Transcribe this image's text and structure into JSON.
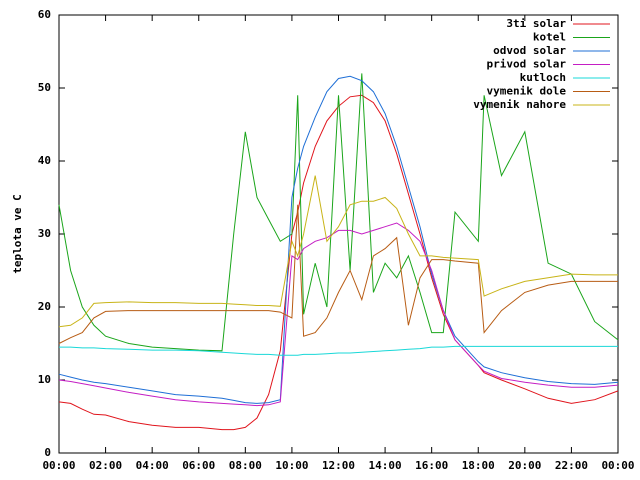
{
  "chart_data": {
    "type": "line",
    "ylabel": "teplota ve C",
    "x": [
      0,
      0.5,
      1,
      1.5,
      2,
      3,
      4,
      5,
      6,
      7,
      7.5,
      8,
      8.5,
      9,
      9.5,
      10,
      10.25,
      10.5,
      11,
      11.5,
      12,
      12.5,
      13,
      13.5,
      14,
      14.5,
      15,
      15.5,
      16,
      16.5,
      17,
      18,
      18.25,
      19,
      20,
      21,
      22,
      23,
      24
    ],
    "xlim": [
      0,
      24
    ],
    "xticks": [
      {
        "value": 0,
        "label": "00:00"
      },
      {
        "value": 2,
        "label": "02:00"
      },
      {
        "value": 4,
        "label": "04:00"
      },
      {
        "value": 6,
        "label": "06:00"
      },
      {
        "value": 8,
        "label": "08:00"
      },
      {
        "value": 10,
        "label": "10:00"
      },
      {
        "value": 12,
        "label": "12:00"
      },
      {
        "value": 14,
        "label": "14:00"
      },
      {
        "value": 16,
        "label": "16:00"
      },
      {
        "value": 18,
        "label": "18:00"
      },
      {
        "value": 20,
        "label": "20:00"
      },
      {
        "value": 22,
        "label": "22:00"
      },
      {
        "value": 24,
        "label": "00:00"
      }
    ],
    "ylim": [
      0,
      60
    ],
    "yticks": [
      0,
      10,
      20,
      30,
      40,
      50,
      60
    ],
    "legend": "top-right",
    "series": [
      {
        "name": "3ti solar",
        "color": "#e0141c",
        "values": [
          7,
          6.8,
          6,
          5.3,
          5.2,
          4.3,
          3.8,
          3.5,
          3.5,
          3.2,
          3.2,
          3.5,
          4.8,
          8,
          14,
          30,
          33,
          37,
          42,
          45.5,
          47.5,
          48.8,
          49,
          48,
          45.5,
          41,
          35.5,
          30,
          24,
          19,
          15.5,
          12,
          11,
          10,
          8.8,
          7.5,
          6.8,
          7.3,
          8.5
        ]
      },
      {
        "name": "kotel",
        "color": "#1aa51a",
        "values": [
          34,
          25,
          20,
          17.5,
          16,
          15,
          14.5,
          14.3,
          14.1,
          14,
          30,
          44,
          35,
          32,
          29,
          30,
          49,
          19,
          26,
          20,
          49,
          25,
          52,
          22,
          26,
          24,
          27,
          22,
          16.5,
          16.5,
          33,
          29,
          49,
          38,
          44,
          26,
          24.5,
          18,
          15.5
        ]
      },
      {
        "name": "odvod solar",
        "color": "#1f6fd6",
        "values": [
          10.8,
          10.4,
          10,
          9.7,
          9.5,
          9,
          8.5,
          8,
          7.8,
          7.5,
          7.2,
          6.9,
          6.8,
          6.9,
          7.3,
          35,
          39,
          42,
          46,
          49.5,
          51.3,
          51.6,
          51,
          49.5,
          46.5,
          42,
          36.5,
          31,
          24.5,
          19.5,
          16,
          12.5,
          11.8,
          11,
          10.3,
          9.8,
          9.5,
          9.4,
          9.7
        ]
      },
      {
        "name": "privod solar",
        "color": "#c41ec4",
        "values": [
          10,
          9.8,
          9.5,
          9.2,
          8.9,
          8.3,
          7.8,
          7.3,
          7,
          6.8,
          6.7,
          6.6,
          6.5,
          6.6,
          7,
          27,
          26.5,
          28,
          29,
          29.5,
          30.5,
          30.5,
          30,
          30.5,
          31,
          31.5,
          30.5,
          29,
          25,
          19.5,
          15.5,
          12,
          11.2,
          10.2,
          9.7,
          9.3,
          9,
          9,
          9.3
        ]
      },
      {
        "name": "kutloch",
        "color": "#19d8d8",
        "values": [
          14.5,
          14.5,
          14.4,
          14.4,
          14.3,
          14.2,
          14.1,
          14.1,
          14,
          13.8,
          13.7,
          13.6,
          13.5,
          13.5,
          13.4,
          13.4,
          13.4,
          13.5,
          13.5,
          13.6,
          13.7,
          13.7,
          13.8,
          13.9,
          14,
          14.1,
          14.2,
          14.3,
          14.5,
          14.5,
          14.6,
          14.6,
          14.6,
          14.6,
          14.6,
          14.6,
          14.6,
          14.6,
          14.6
        ]
      },
      {
        "name": "vymenik dole",
        "color": "#b85c14",
        "values": [
          15,
          15.8,
          16.5,
          18.5,
          19.4,
          19.5,
          19.5,
          19.5,
          19.5,
          19.5,
          19.5,
          19.5,
          19.5,
          19.5,
          19.3,
          18.5,
          34,
          16,
          16.5,
          18.5,
          22,
          25,
          21,
          27,
          28,
          29.5,
          17.5,
          24,
          26.5,
          26.5,
          26.3,
          26,
          16.5,
          19.5,
          22,
          23,
          23.5,
          23.5,
          23.5
        ]
      },
      {
        "name": "vymenik nahore",
        "color": "#c8b418",
        "values": [
          17.3,
          17.5,
          18.5,
          20.5,
          20.6,
          20.7,
          20.6,
          20.6,
          20.5,
          20.5,
          20.4,
          20.3,
          20.2,
          20.2,
          20.1,
          29,
          27,
          30,
          38,
          29,
          31,
          34,
          34.5,
          34.5,
          35,
          33.5,
          30,
          27,
          27,
          26.8,
          26.7,
          26.5,
          21.5,
          22.5,
          23.5,
          24,
          24.5,
          24.4,
          24.4
        ]
      }
    ]
  }
}
